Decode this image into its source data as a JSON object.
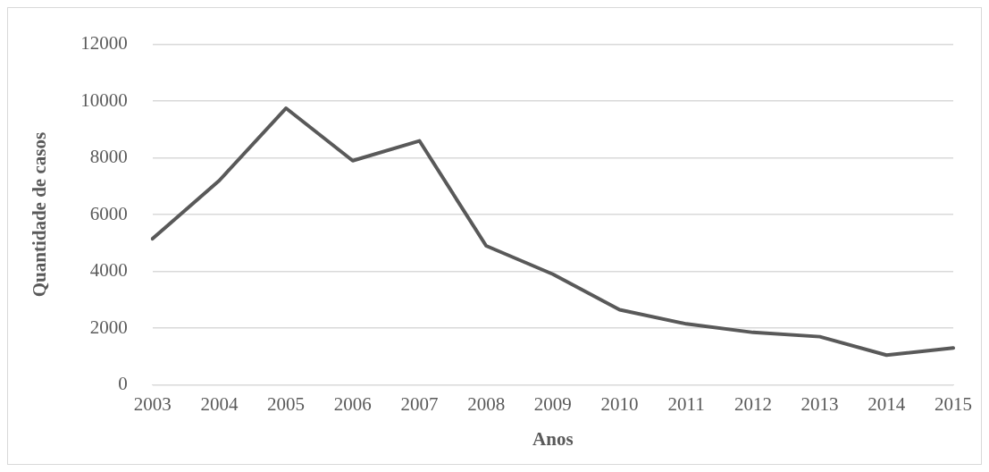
{
  "chart_data": {
    "type": "line",
    "xlabel": "Anos",
    "ylabel": "Quantidade de casos",
    "categories": [
      "2003",
      "2004",
      "2005",
      "2006",
      "2007",
      "2008",
      "2009",
      "2010",
      "2011",
      "2012",
      "2013",
      "2014",
      "2015"
    ],
    "series": [
      {
        "color": "#595959",
        "values": [
          5150,
          7200,
          9750,
          7900,
          8600,
          4900,
          3900,
          2650,
          2150,
          1850,
          1700,
          1050,
          1300
        ]
      }
    ],
    "ylim": [
      0,
      12000
    ],
    "yticks": [
      0,
      2000,
      4000,
      6000,
      8000,
      10000,
      12000
    ],
    "grid": "y",
    "legend": false,
    "marker": "none",
    "line_style": "solid"
  }
}
